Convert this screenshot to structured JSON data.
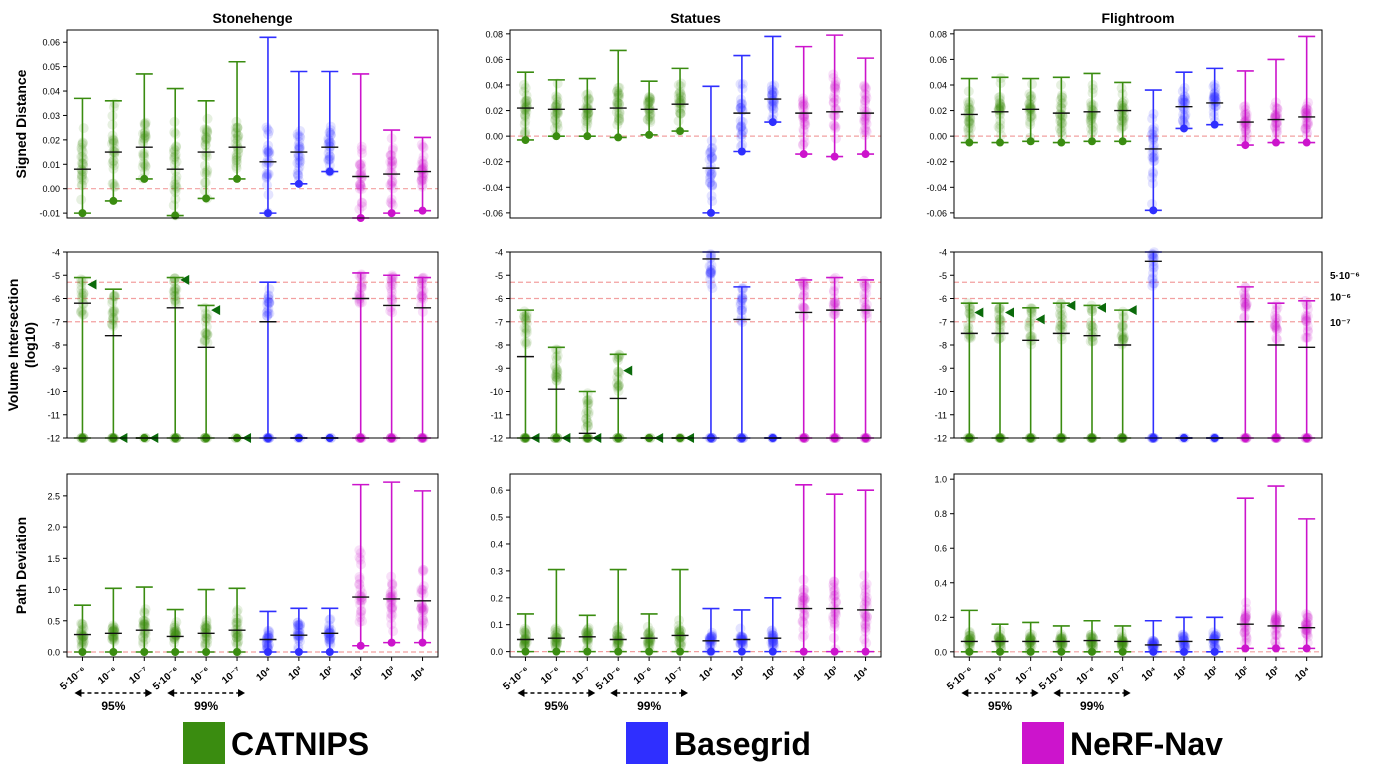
{
  "columns": [
    "Stonehenge",
    "Statues",
    "Flightroom"
  ],
  "row_labels": {
    "sd": [
      "Signed Distance"
    ],
    "vol": [
      "Volume Intersection",
      "(log10)"
    ],
    "pd": [
      "Path Deviation"
    ]
  },
  "vol_refs": [
    "5·10⁻⁶",
    "10⁻⁶",
    "10⁻⁷"
  ],
  "x_ticks": [
    "5·10⁻⁶",
    "10⁻⁶",
    "10⁻⁷",
    "5·10⁻⁶",
    "10⁻⁶",
    "10⁻⁷",
    "10⁴",
    "10³",
    "10²",
    "10²",
    "10³",
    "10⁴"
  ],
  "conf_groups": [
    "95%",
    "99%"
  ],
  "legend": [
    {
      "name": "CATNIPS",
      "color": "#3a8c10"
    },
    {
      "name": "Basegrid",
      "color": "#2f2fff"
    },
    {
      "name": "NeRF-Nav",
      "color": "#cc14cc"
    }
  ],
  "chart_data": [
    {
      "type": "scatter",
      "title": "Stonehenge",
      "ylabel": "Signed Distance",
      "ylim": [
        -0.012,
        0.065
      ],
      "yticks": [
        -0.01,
        0,
        0.01,
        0.02,
        0.03,
        0.04,
        0.05,
        0.06
      ],
      "yticklabels": [
        "-0.01",
        "0.00",
        "0.01",
        "0.02",
        "0.03",
        "0.04",
        "0.05",
        "0.06"
      ],
      "grid": false,
      "ref": 0,
      "series": [
        {
          "min": -0.01,
          "max": 0.037,
          "mean": 0.008
        },
        {
          "min": -0.005,
          "max": 0.036,
          "mean": 0.015
        },
        {
          "min": 0.004,
          "max": 0.047,
          "mean": 0.017
        },
        {
          "min": -0.011,
          "max": 0.041,
          "mean": 0.008
        },
        {
          "min": -0.004,
          "max": 0.036,
          "mean": 0.015
        },
        {
          "min": 0.004,
          "max": 0.052,
          "mean": 0.017
        },
        {
          "min": -0.01,
          "max": 0.062,
          "mean": 0.011
        },
        {
          "min": 0.002,
          "max": 0.048,
          "mean": 0.015
        },
        {
          "min": 0.007,
          "max": 0.048,
          "mean": 0.017
        },
        {
          "min": -0.012,
          "max": 0.047,
          "mean": 0.005
        },
        {
          "min": -0.01,
          "max": 0.024,
          "mean": 0.006
        },
        {
          "min": -0.009,
          "max": 0.021,
          "mean": 0.007
        }
      ]
    },
    {
      "type": "scatter",
      "title": "Statues",
      "ylim": [
        -0.064,
        0.083
      ],
      "yticks": [
        -0.06,
        -0.04,
        -0.02,
        0,
        0.02,
        0.04,
        0.06,
        0.08
      ],
      "yticklabels": [
        "-0.06",
        "-0.04",
        "-0.02",
        "0.00",
        "0.02",
        "0.04",
        "0.06",
        "0.08"
      ],
      "grid": false,
      "ref": 0,
      "series": [
        {
          "min": -0.003,
          "max": 0.05,
          "mean": 0.022
        },
        {
          "min": 0.0,
          "max": 0.044,
          "mean": 0.021
        },
        {
          "min": 0.0,
          "max": 0.045,
          "mean": 0.021
        },
        {
          "min": -0.001,
          "max": 0.067,
          "mean": 0.022
        },
        {
          "min": 0.001,
          "max": 0.043,
          "mean": 0.021
        },
        {
          "min": 0.004,
          "max": 0.053,
          "mean": 0.025
        },
        {
          "min": -0.06,
          "max": 0.039,
          "mean": -0.025
        },
        {
          "min": -0.012,
          "max": 0.063,
          "mean": 0.018
        },
        {
          "min": 0.011,
          "max": 0.078,
          "mean": 0.029
        },
        {
          "min": -0.014,
          "max": 0.07,
          "mean": 0.018
        },
        {
          "min": -0.016,
          "max": 0.079,
          "mean": 0.019
        },
        {
          "min": -0.014,
          "max": 0.061,
          "mean": 0.018
        }
      ]
    },
    {
      "type": "scatter",
      "title": "Flightroom",
      "ylim": [
        -0.064,
        0.083
      ],
      "yticks": [
        -0.06,
        -0.04,
        -0.02,
        0,
        0.02,
        0.04,
        0.06,
        0.08
      ],
      "yticklabels": [
        "-0.06",
        "-0.04",
        "-0.02",
        "0.00",
        "0.02",
        "0.04",
        "0.06",
        "0.08"
      ],
      "grid": false,
      "ref": 0,
      "series": [
        {
          "min": -0.005,
          "max": 0.045,
          "mean": 0.017
        },
        {
          "min": -0.005,
          "max": 0.046,
          "mean": 0.019
        },
        {
          "min": -0.004,
          "max": 0.045,
          "mean": 0.021
        },
        {
          "min": -0.005,
          "max": 0.046,
          "mean": 0.018
        },
        {
          "min": -0.004,
          "max": 0.049,
          "mean": 0.019
        },
        {
          "min": -0.004,
          "max": 0.042,
          "mean": 0.02
        },
        {
          "min": -0.058,
          "max": 0.036,
          "mean": -0.01
        },
        {
          "min": 0.006,
          "max": 0.05,
          "mean": 0.023
        },
        {
          "min": 0.009,
          "max": 0.053,
          "mean": 0.026
        },
        {
          "min": -0.007,
          "max": 0.051,
          "mean": 0.011
        },
        {
          "min": -0.005,
          "max": 0.06,
          "mean": 0.013
        },
        {
          "min": -0.005,
          "max": 0.078,
          "mean": 0.015
        }
      ]
    },
    {
      "type": "scatter",
      "title": "",
      "ylabel": "Volume Intersection (log10)",
      "ylim": [
        -12,
        -4
      ],
      "yticks": [
        -12,
        -11,
        -10,
        -9,
        -8,
        -7,
        -6,
        -5,
        -4
      ],
      "yticklabels": [
        "-12",
        "-11",
        "-10",
        "-9",
        "-8",
        "-7",
        "-6",
        "-5",
        "-4"
      ],
      "grid": false,
      "refs": [
        -5.3,
        -6,
        -7
      ],
      "series": [
        {
          "min": -12,
          "max": -5.1,
          "mean": -6.2
        },
        {
          "min": -12,
          "max": -5.6,
          "mean": -7.6
        },
        {
          "min": -12,
          "max": -12,
          "mean": -12
        },
        {
          "min": -12,
          "max": -5.1,
          "mean": -6.4
        },
        {
          "min": -12,
          "max": -6.3,
          "mean": -8.1
        },
        {
          "min": -12,
          "max": -12,
          "mean": -12
        },
        {
          "min": -12,
          "max": -5.3,
          "mean": -7.0
        },
        {
          "min": -12,
          "max": -12,
          "mean": -12
        },
        {
          "min": -12,
          "max": -12,
          "mean": -12
        },
        {
          "min": -12,
          "max": -4.9,
          "mean": -6.0
        },
        {
          "min": -12,
          "max": -5.0,
          "mean": -6.3
        },
        {
          "min": -12,
          "max": -5.1,
          "mean": -6.4
        }
      ],
      "markers": [
        -5.4,
        -12,
        -12,
        -5.2,
        -6.5,
        -12
      ]
    },
    {
      "type": "scatter",
      "title": "",
      "ylim": [
        -12,
        -4
      ],
      "yticks": [
        -12,
        -11,
        -10,
        -9,
        -8,
        -7,
        -6,
        -5,
        -4
      ],
      "yticklabels": [
        "-12",
        "-11",
        "-10",
        "-9",
        "-8",
        "-7",
        "-6",
        "-5",
        "-4"
      ],
      "grid": false,
      "refs": [
        -5.3,
        -6,
        -7
      ],
      "series": [
        {
          "min": -12,
          "max": -6.5,
          "mean": -8.5
        },
        {
          "min": -12,
          "max": -8.1,
          "mean": -9.9
        },
        {
          "min": -12,
          "max": -10.0,
          "mean": -11.8
        },
        {
          "min": -12,
          "max": -8.4,
          "mean": -10.3
        },
        {
          "min": -12,
          "max": -12,
          "mean": -12
        },
        {
          "min": -12,
          "max": -12,
          "mean": -12
        },
        {
          "min": -12,
          "max": -4.0,
          "mean": -4.3
        },
        {
          "min": -12,
          "max": -5.5,
          "mean": -6.9
        },
        {
          "min": -12,
          "max": -12,
          "mean": -12
        },
        {
          "min": -12,
          "max": -5.2,
          "mean": -6.6
        },
        {
          "min": -12,
          "max": -5.1,
          "mean": -6.5
        },
        {
          "min": -12,
          "max": -5.2,
          "mean": -6.5
        }
      ],
      "markers": [
        -12,
        -12,
        -12,
        -9.1,
        -12,
        -12
      ]
    },
    {
      "type": "scatter",
      "title": "",
      "ylim": [
        -12,
        -4
      ],
      "yticks": [
        -12,
        -11,
        -10,
        -9,
        -8,
        -7,
        -6,
        -5,
        -4
      ],
      "yticklabels": [
        "-12",
        "-11",
        "-10",
        "-9",
        "-8",
        "-7",
        "-6",
        "-5",
        "-4"
      ],
      "grid": false,
      "refs": [
        -5.3,
        -6,
        -7
      ],
      "series": [
        {
          "min": -12,
          "max": -6.2,
          "mean": -7.5
        },
        {
          "min": -12,
          "max": -6.2,
          "mean": -7.5
        },
        {
          "min": -12,
          "max": -6.4,
          "mean": -7.8
        },
        {
          "min": -12,
          "max": -6.2,
          "mean": -7.5
        },
        {
          "min": -12,
          "max": -6.3,
          "mean": -7.6
        },
        {
          "min": -12,
          "max": -6.5,
          "mean": -8.0
        },
        {
          "min": -12,
          "max": -4.0,
          "mean": -4.4
        },
        {
          "min": -12,
          "max": -12,
          "mean": -12
        },
        {
          "min": -12,
          "max": -12,
          "mean": -12
        },
        {
          "min": -12,
          "max": -5.5,
          "mean": -7.0
        },
        {
          "min": -12,
          "max": -6.2,
          "mean": -8.0
        },
        {
          "min": -12,
          "max": -6.1,
          "mean": -8.1
        }
      ],
      "markers": [
        -6.6,
        -6.6,
        -6.9,
        -6.3,
        -6.4,
        -6.5
      ]
    },
    {
      "type": "scatter",
      "title": "",
      "ylabel": "Path Deviation",
      "ylim": [
        -0.08,
        2.85
      ],
      "yticks": [
        0,
        0.5,
        1.0,
        1.5,
        2.0,
        2.5
      ],
      "yticklabels": [
        "0.0",
        "0.5",
        "1.0",
        "1.5",
        "2.0",
        "2.5"
      ],
      "grid": false,
      "ref": 0,
      "series": [
        {
          "min": 0.0,
          "max": 0.75,
          "mean": 0.28
        },
        {
          "min": 0.0,
          "max": 1.02,
          "mean": 0.3
        },
        {
          "min": 0.0,
          "max": 1.04,
          "mean": 0.35
        },
        {
          "min": 0.0,
          "max": 0.68,
          "mean": 0.25
        },
        {
          "min": 0.0,
          "max": 1.0,
          "mean": 0.3
        },
        {
          "min": 0.0,
          "max": 1.02,
          "mean": 0.35
        },
        {
          "min": 0.0,
          "max": 0.65,
          "mean": 0.2
        },
        {
          "min": 0.0,
          "max": 0.7,
          "mean": 0.27
        },
        {
          "min": 0.0,
          "max": 0.7,
          "mean": 0.3
        },
        {
          "min": 0.1,
          "max": 2.68,
          "mean": 0.88
        },
        {
          "min": 0.15,
          "max": 2.72,
          "mean": 0.85
        },
        {
          "min": 0.15,
          "max": 2.58,
          "mean": 0.82
        }
      ]
    },
    {
      "type": "scatter",
      "title": "",
      "ylim": [
        -0.02,
        0.66
      ],
      "yticks": [
        0,
        0.1,
        0.2,
        0.3,
        0.4,
        0.5,
        0.6
      ],
      "yticklabels": [
        "0.0",
        "0.1",
        "0.2",
        "0.3",
        "0.4",
        "0.5",
        "0.6"
      ],
      "grid": false,
      "ref": 0,
      "series": [
        {
          "min": 0.0,
          "max": 0.14,
          "mean": 0.045
        },
        {
          "min": 0.0,
          "max": 0.305,
          "mean": 0.05
        },
        {
          "min": 0.0,
          "max": 0.135,
          "mean": 0.055
        },
        {
          "min": 0.0,
          "max": 0.305,
          "mean": 0.045
        },
        {
          "min": 0.0,
          "max": 0.14,
          "mean": 0.05
        },
        {
          "min": 0.0,
          "max": 0.305,
          "mean": 0.06
        },
        {
          "min": 0.0,
          "max": 0.16,
          "mean": 0.04
        },
        {
          "min": 0.0,
          "max": 0.155,
          "mean": 0.045
        },
        {
          "min": 0.0,
          "max": 0.2,
          "mean": 0.05
        },
        {
          "min": 0.0,
          "max": 0.62,
          "mean": 0.16
        },
        {
          "min": 0.0,
          "max": 0.585,
          "mean": 0.16
        },
        {
          "min": 0.0,
          "max": 0.6,
          "mean": 0.155
        }
      ]
    },
    {
      "type": "scatter",
      "title": "",
      "ylim": [
        -0.03,
        1.03
      ],
      "yticks": [
        0,
        0.2,
        0.4,
        0.6,
        0.8,
        1.0
      ],
      "yticklabels": [
        "0.0",
        "0.2",
        "0.4",
        "0.6",
        "0.8",
        "1.0"
      ],
      "grid": false,
      "ref": 0,
      "series": [
        {
          "min": 0.0,
          "max": 0.24,
          "mean": 0.06
        },
        {
          "min": 0.0,
          "max": 0.16,
          "mean": 0.06
        },
        {
          "min": 0.0,
          "max": 0.17,
          "mean": 0.06
        },
        {
          "min": 0.0,
          "max": 0.15,
          "mean": 0.06
        },
        {
          "min": 0.0,
          "max": 0.18,
          "mean": 0.065
        },
        {
          "min": 0.0,
          "max": 0.15,
          "mean": 0.06
        },
        {
          "min": 0.0,
          "max": 0.18,
          "mean": 0.04
        },
        {
          "min": 0.0,
          "max": 0.2,
          "mean": 0.06
        },
        {
          "min": 0.0,
          "max": 0.2,
          "mean": 0.07
        },
        {
          "min": 0.02,
          "max": 0.89,
          "mean": 0.16
        },
        {
          "min": 0.02,
          "max": 0.96,
          "mean": 0.15
        },
        {
          "min": 0.02,
          "max": 0.77,
          "mean": 0.14
        }
      ]
    }
  ]
}
